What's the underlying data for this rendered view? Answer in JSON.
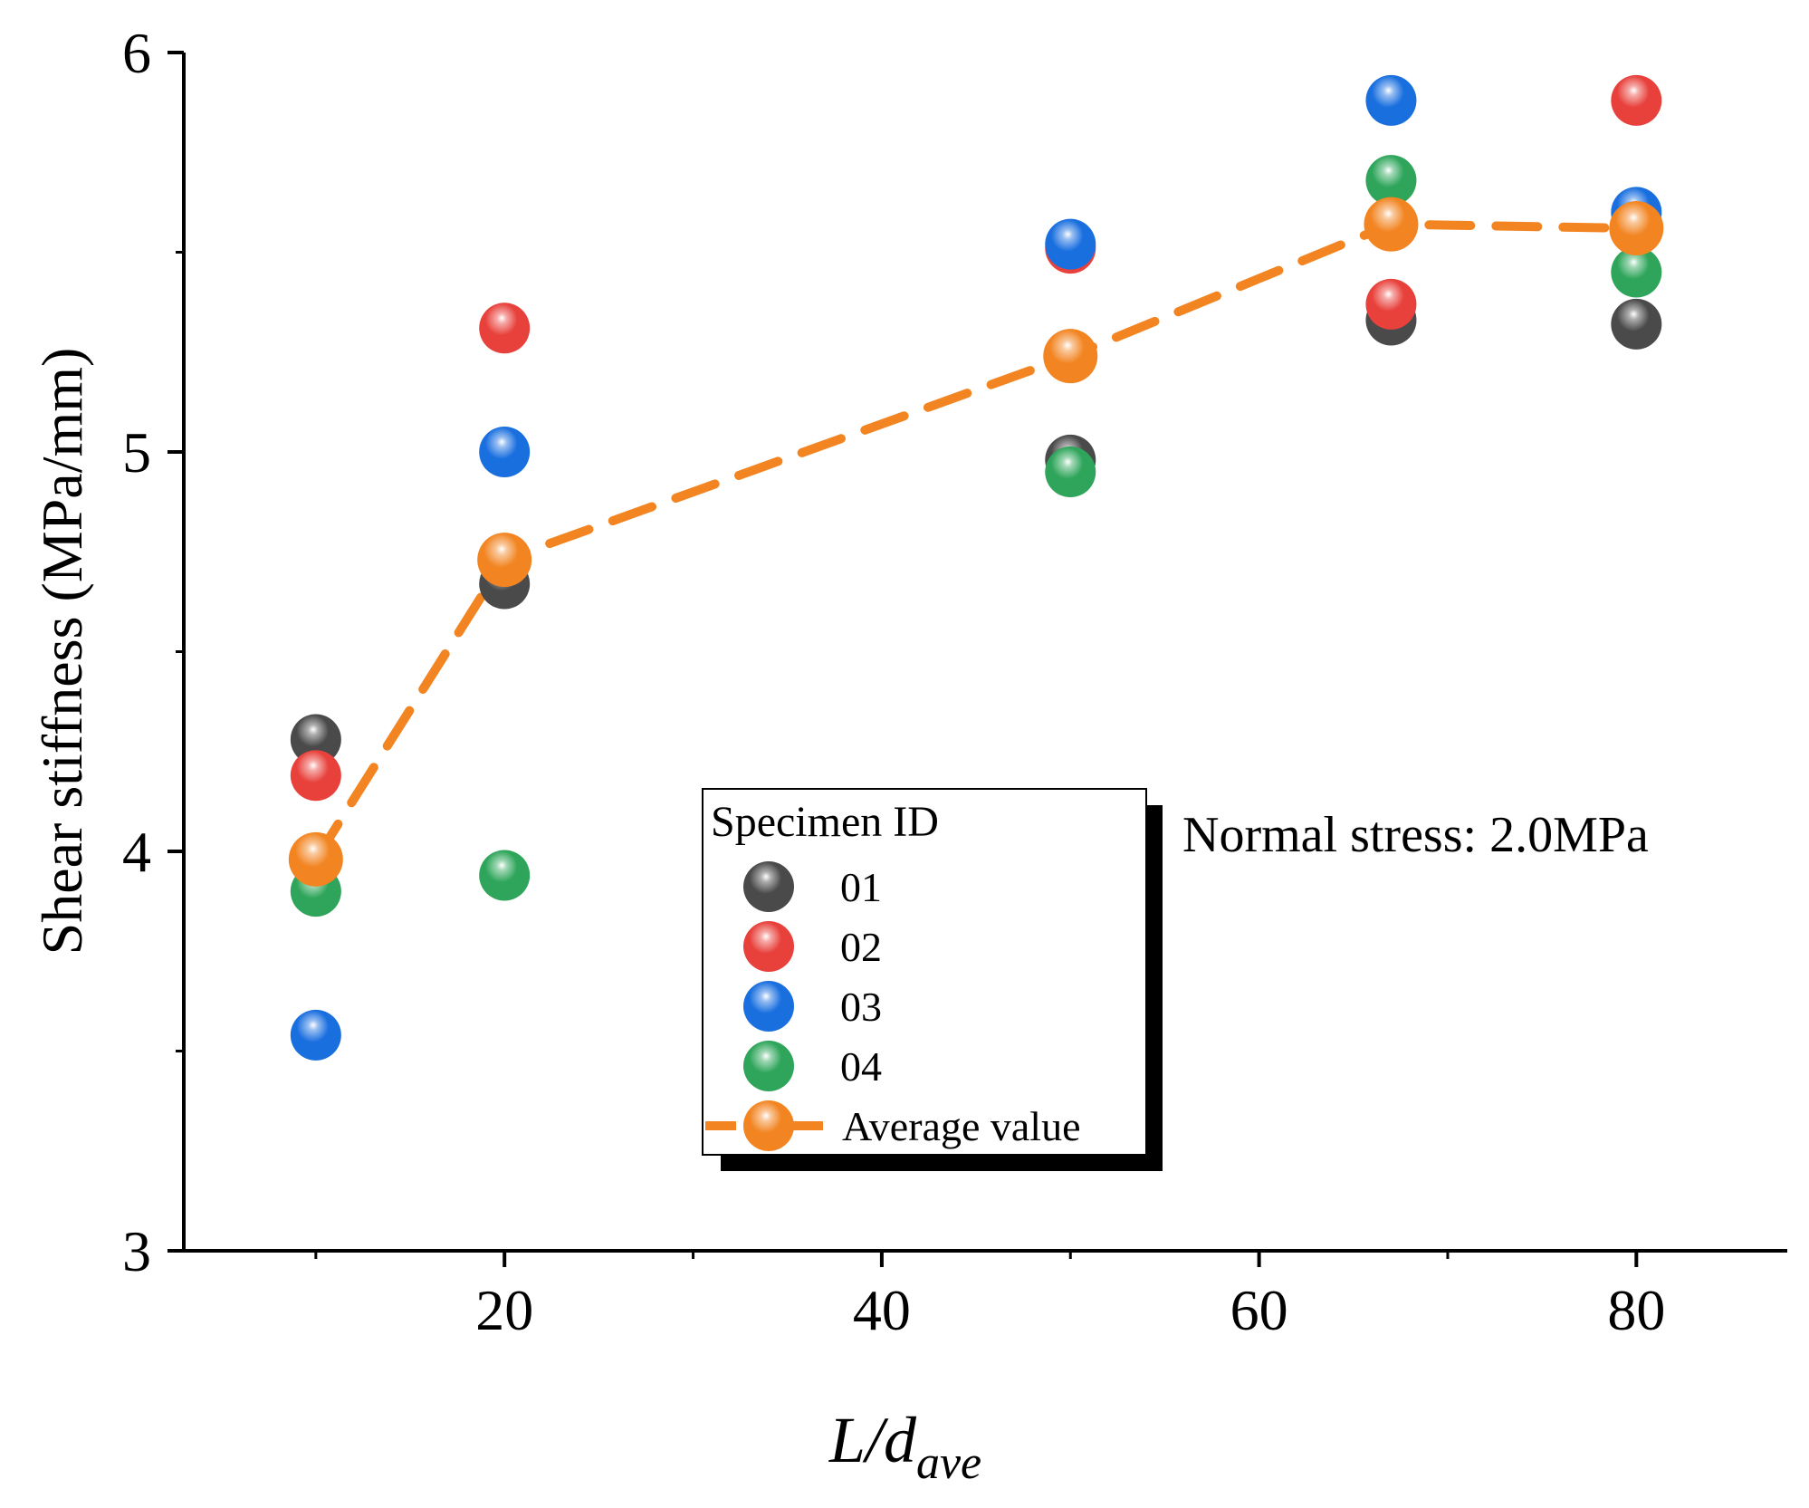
{
  "chart_data": {
    "type": "scatter",
    "xlabel": {
      "main": "L/d",
      "subscript": "ave"
    },
    "ylabel": "Shear stiffness (MPa/mm)",
    "xlim": [
      3,
      88
    ],
    "ylim": [
      3,
      6
    ],
    "xticks": [
      20,
      40,
      60,
      80
    ],
    "yticks": [
      3,
      4,
      5,
      6
    ],
    "x": [
      10,
      20,
      50,
      67,
      80
    ],
    "series": [
      {
        "name": "01",
        "color": "#4a4a4a",
        "values": [
          4.28,
          4.67,
          4.98,
          5.33,
          5.32
        ]
      },
      {
        "name": "02",
        "color": "#e8413c",
        "values": [
          4.19,
          5.31,
          5.51,
          5.37,
          5.88
        ]
      },
      {
        "name": "03",
        "color": "#1a6fdf",
        "values": [
          3.54,
          5.0,
          5.52,
          5.88,
          5.6
        ]
      },
      {
        "name": "04",
        "color": "#2ea55a",
        "values": [
          3.9,
          3.94,
          4.95,
          5.68,
          5.45
        ]
      }
    ],
    "average": {
      "name": "Average value",
      "color": "#f28522",
      "values": [
        3.98,
        4.73,
        5.24,
        5.57,
        5.56
      ]
    },
    "legend": {
      "title": "Specimen ID",
      "placement": "center"
    },
    "annotation": "Normal stress: 2.0MPa"
  }
}
